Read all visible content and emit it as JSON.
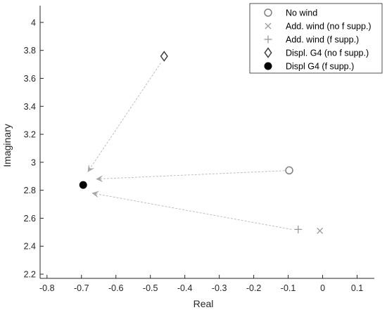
{
  "chart_data": {
    "type": "scatter",
    "xlabel": "Real",
    "ylabel": "Imaginary",
    "xlim": [
      -0.82,
      0.15
    ],
    "ylim": [
      2.17,
      4.12
    ],
    "xticks": [
      "-0.8",
      "-0.7",
      "-0.6",
      "-0.5",
      "-0.4",
      "-0.3",
      "-0.2",
      "-0.1",
      "0",
      "0.1"
    ],
    "yticks": [
      "2.2",
      "2.4",
      "2.6",
      "2.8",
      "3",
      "3.2",
      "3.4",
      "3.6",
      "3.8",
      "4"
    ],
    "xtick_values": [
      -0.8,
      -0.7,
      -0.6,
      -0.5,
      -0.4,
      -0.3,
      -0.2,
      -0.1,
      0,
      0.1
    ],
    "ytick_values": [
      2.2,
      2.4,
      2.6,
      2.8,
      3.0,
      3.2,
      3.4,
      3.6,
      3.8,
      4.0
    ],
    "grid": false,
    "legend_position": "top-right",
    "series": [
      {
        "name": "No wind",
        "marker": "circle",
        "color": "#808080",
        "points": [
          [
            -0.097,
            2.942
          ]
        ]
      },
      {
        "name": "Add. wind (no f supp.)",
        "marker": "x",
        "color": "#999999",
        "points": [
          [
            -0.008,
            2.51
          ]
        ]
      },
      {
        "name": "Add. wind (f supp.)",
        "marker": "plus",
        "color": "#999999",
        "points": [
          [
            -0.071,
            2.52
          ]
        ]
      },
      {
        "name": "Displ. G4 (no f supp.)",
        "marker": "diamond",
        "color": "#404040",
        "points": [
          [
            -0.46,
            3.758
          ]
        ]
      },
      {
        "name": "Displ G4 (f supp.)",
        "marker": "filled-circle",
        "color": "#000000",
        "points": [
          [
            -0.695,
            2.838
          ]
        ]
      }
    ],
    "arrows": [
      {
        "from": [
          -0.47,
          3.71
        ],
        "to": [
          -0.682,
          2.93
        ]
      },
      {
        "from": [
          -0.11,
          2.94
        ],
        "to": [
          -0.658,
          2.88
        ]
      },
      {
        "from": [
          -0.09,
          2.52
        ],
        "to": [
          -0.67,
          2.78
        ]
      }
    ],
    "arrow_color": "#bfbfbf"
  }
}
